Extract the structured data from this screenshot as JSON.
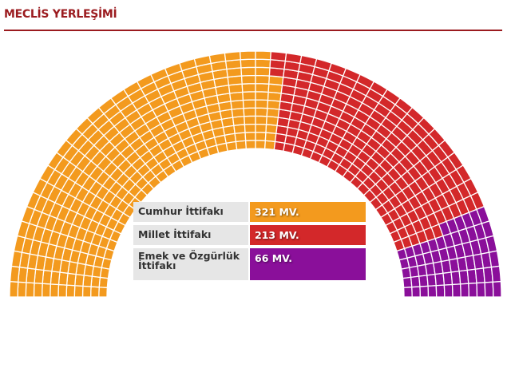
{
  "title": "MECLİS YERLEŞİMİ",
  "chart_data": {
    "type": "parliament",
    "total_seats": 600,
    "series": [
      {
        "name": "Cumhur İttifakı",
        "value": 321,
        "label": "321 MV.",
        "color": "#f39a1e"
      },
      {
        "name": "Millet İttifakı",
        "value": 213,
        "label": "213 MV.",
        "color": "#d3282a"
      },
      {
        "name": "Emek ve Özgürlük İttifakı",
        "value": 66,
        "label": "66 MV.",
        "color": "#8a0f9a"
      }
    ]
  }
}
